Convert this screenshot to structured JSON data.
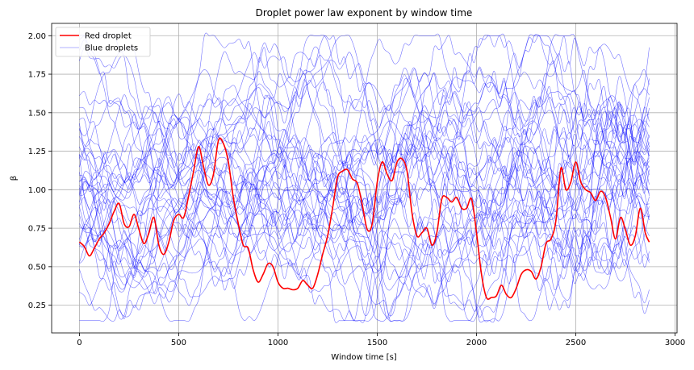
{
  "chart_data": {
    "type": "line",
    "title": "Droplet power law exponent by window time",
    "xlabel": "Window time [s]",
    "ylabel": "β",
    "xlim": [
      -140,
      3010
    ],
    "ylim": [
      0.07,
      2.08
    ],
    "xticks": [
      0,
      500,
      1000,
      1500,
      2000,
      2500,
      3000
    ],
    "yticks": [
      0.25,
      0.5,
      0.75,
      1.0,
      1.25,
      1.5,
      1.75,
      2.0
    ],
    "xtick_labels": [
      "0",
      "500",
      "1000",
      "1500",
      "2000",
      "2500",
      "3000"
    ],
    "ytick_labels": [
      "0.25",
      "0.50",
      "0.75",
      "1.00",
      "1.25",
      "1.50",
      "1.75",
      "2.00"
    ],
    "grid": true,
    "legend_position": "top-left",
    "legend": [
      {
        "label": "Red droplet",
        "color": "#ff0000"
      },
      {
        "label": "Blue droplets",
        "color": "#0000ff"
      }
    ],
    "red_series": {
      "name": "Red droplet",
      "color": "#ff0000",
      "x": [
        0,
        25,
        50,
        75,
        100,
        125,
        150,
        175,
        200,
        225,
        250,
        275,
        300,
        325,
        350,
        375,
        400,
        425,
        450,
        475,
        500,
        525,
        550,
        575,
        600,
        625,
        650,
        675,
        700,
        725,
        750,
        775,
        800,
        825,
        850,
        875,
        900,
        925,
        950,
        975,
        1000,
        1025,
        1050,
        1075,
        1100,
        1125,
        1150,
        1175,
        1200,
        1225,
        1250,
        1275,
        1300,
        1325,
        1350,
        1375,
        1400,
        1425,
        1450,
        1475,
        1500,
        1525,
        1550,
        1575,
        1600,
        1625,
        1650,
        1675,
        1700,
        1725,
        1750,
        1775,
        1800,
        1825,
        1850,
        1875,
        1900,
        1925,
        1950,
        1975,
        2000,
        2025,
        2050,
        2075,
        2100,
        2125,
        2150,
        2175,
        2200,
        2225,
        2250,
        2275,
        2300,
        2325,
        2350,
        2375,
        2400,
        2425,
        2450,
        2475,
        2500,
        2525,
        2550,
        2575,
        2600,
        2625,
        2650,
        2675,
        2700,
        2725,
        2750,
        2775,
        2800,
        2825,
        2850,
        2870
      ],
      "y": [
        0.66,
        0.63,
        0.57,
        0.62,
        0.68,
        0.72,
        0.78,
        0.86,
        0.91,
        0.78,
        0.76,
        0.84,
        0.74,
        0.65,
        0.72,
        0.82,
        0.64,
        0.58,
        0.66,
        0.8,
        0.84,
        0.82,
        0.96,
        1.12,
        1.28,
        1.15,
        1.03,
        1.1,
        1.32,
        1.3,
        1.18,
        0.95,
        0.78,
        0.64,
        0.62,
        0.48,
        0.4,
        0.45,
        0.52,
        0.5,
        0.4,
        0.36,
        0.36,
        0.35,
        0.36,
        0.41,
        0.38,
        0.36,
        0.45,
        0.58,
        0.7,
        0.88,
        1.08,
        1.12,
        1.13,
        1.07,
        1.04,
        0.9,
        0.74,
        0.78,
        1.05,
        1.18,
        1.1,
        1.06,
        1.18,
        1.2,
        1.12,
        0.85,
        0.7,
        0.72,
        0.75,
        0.64,
        0.72,
        0.94,
        0.95,
        0.92,
        0.95,
        0.88,
        0.88,
        0.94,
        0.72,
        0.45,
        0.3,
        0.3,
        0.31,
        0.38,
        0.32,
        0.3,
        0.36,
        0.45,
        0.48,
        0.47,
        0.42,
        0.5,
        0.65,
        0.68,
        0.8,
        1.14,
        1.0,
        1.05,
        1.18,
        1.05,
        1.0,
        0.98,
        0.93,
        0.99,
        0.95,
        0.82,
        0.68,
        0.82,
        0.74,
        0.64,
        0.7,
        0.88,
        0.72,
        0.66
      ]
    },
    "blue_series": {
      "name": "Blue droplets",
      "color": "#0000ff",
      "count": 40,
      "x_start": 0,
      "x_end": 2870,
      "samples": 115,
      "value_range": [
        0.15,
        2.0
      ],
      "typical_center": 1.05
    }
  }
}
